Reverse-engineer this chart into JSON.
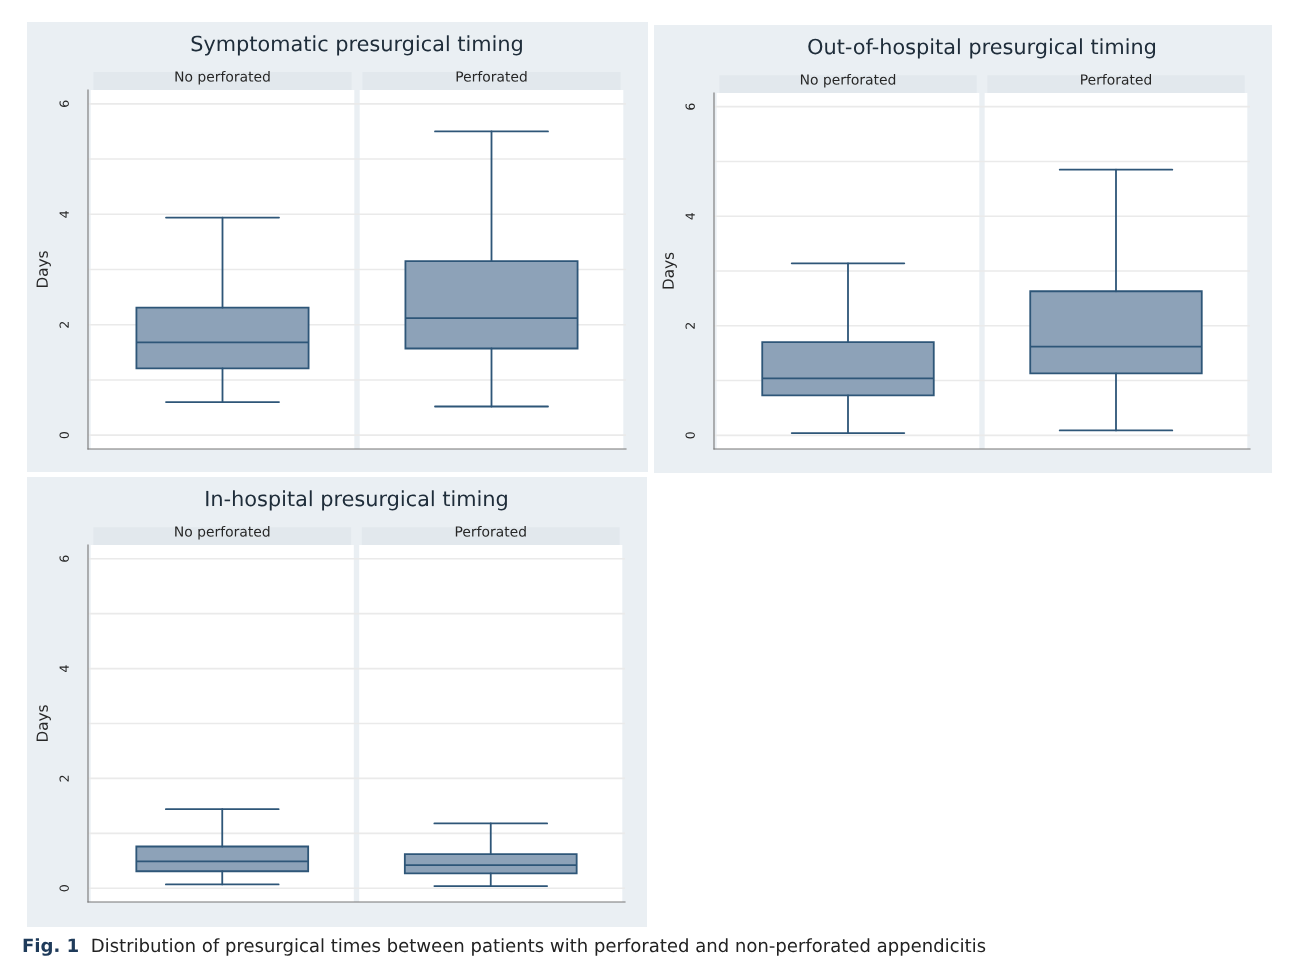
{
  "chart_data": [
    {
      "type": "box",
      "title": "Symptomatic presurgical timing",
      "ylabel": "Days",
      "categories": [
        "No perforated",
        "Perforated"
      ],
      "color": "#8da2b8",
      "boxes": [
        {
          "low": 0.6,
          "q1": 1.21,
          "median": 1.68,
          "q3": 2.31,
          "high": 3.94
        },
        {
          "low": 0.52,
          "q1": 1.57,
          "median": 2.12,
          "q3": 3.15,
          "high": 5.5
        }
      ],
      "ylim": [
        -0.25,
        6.25
      ],
      "yticks": [
        0,
        {
          "value": 1,
          "label": null
        },
        2,
        {
          "value": 3,
          "label": null
        },
        4,
        {
          "value": 5,
          "label": null
        },
        6
      ],
      "grid": "y"
    },
    {
      "type": "box",
      "title": "Out-of-hospital presurgical timing",
      "ylabel": "Days",
      "categories": [
        "No perforated",
        "Perforated"
      ],
      "color": "#8da2b8",
      "boxes": [
        {
          "low": 0.04,
          "q1": 0.73,
          "median": 1.04,
          "q3": 1.7,
          "high": 3.14
        },
        {
          "low": 0.09,
          "q1": 1.13,
          "median": 1.62,
          "q3": 2.63,
          "high": 4.85
        }
      ],
      "ylim": [
        -0.25,
        6.25
      ],
      "yticks": [
        0,
        {
          "value": 1,
          "label": null
        },
        2,
        {
          "value": 3,
          "label": null
        },
        4,
        {
          "value": 5,
          "label": null
        },
        6
      ],
      "grid": "y"
    },
    {
      "type": "box",
      "title": "In-hospital presurgical timing",
      "ylabel": "Days",
      "categories": [
        "No perforated",
        "Perforated"
      ],
      "color": "#8da2b8",
      "boxes": [
        {
          "low": 0.07,
          "q1": 0.31,
          "median": 0.49,
          "q3": 0.76,
          "high": 1.44
        },
        {
          "low": 0.04,
          "q1": 0.27,
          "median": 0.42,
          "q3": 0.62,
          "high": 1.18
        }
      ],
      "ylim": [
        -0.25,
        6.25
      ],
      "yticks": [
        0,
        {
          "value": 1,
          "label": null
        },
        2,
        {
          "value": 3,
          "label": null
        },
        4,
        {
          "value": 5,
          "label": null
        },
        6
      ],
      "grid": "y",
      "annotations": [
        "Fig. 1",
        "Distribution of presurgical times between patients with perforated and non-perforated appendicitis"
      ]
    }
  ]
}
